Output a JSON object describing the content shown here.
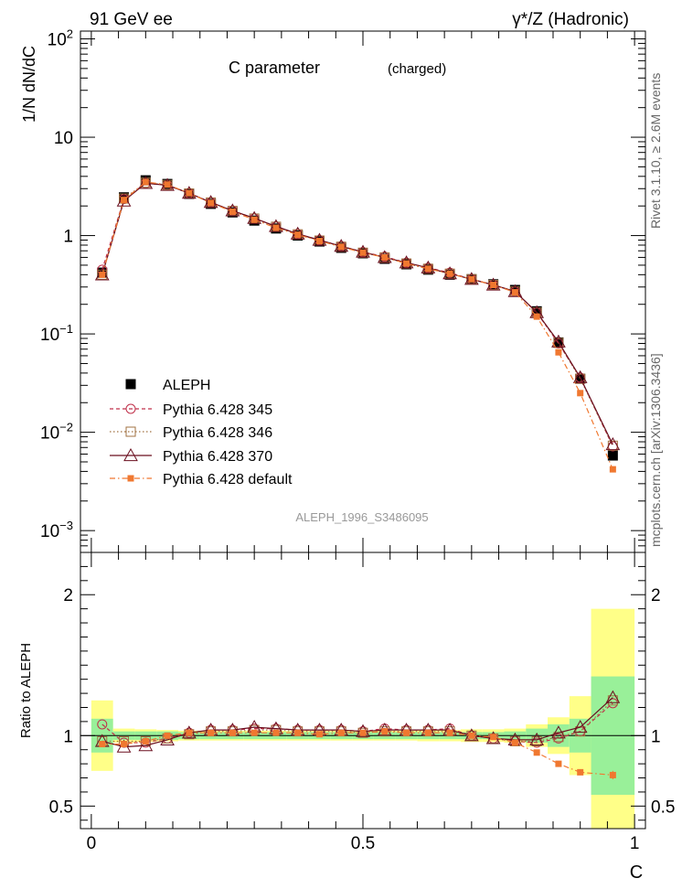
{
  "header": {
    "left": "91 GeV ee",
    "right": "γ*/Z (Hadronic)"
  },
  "side_labels": {
    "rivet": "Rivet 3.1.10, ≥ 2.6M events",
    "mcplots": "mcplots.cern.ch [arXiv:1306.3436]"
  },
  "colors": {
    "aleph": "#000000",
    "p345": "#c0304a",
    "p346": "#a07040",
    "p370": "#6a0f1f",
    "pdefault": "#f07830",
    "band_inner": "#99f099",
    "band_outer": "#ffff88"
  },
  "chart_data": [
    {
      "type": "line",
      "scale": "log",
      "title": "C parameter",
      "subtitle": "(charged)",
      "ylabel": "1/N dN/dC",
      "xlim": [
        -0.02,
        1.02
      ],
      "ylim": [
        0.0006,
        120
      ],
      "y_ticks": [
        {
          "value": 100,
          "base": "10",
          "exp": "2"
        },
        {
          "value": 10,
          "base": "10",
          "exp": ""
        },
        {
          "value": 1,
          "base": "1",
          "exp": ""
        },
        {
          "value": 0.1,
          "base": "10",
          "exp": "−1"
        },
        {
          "value": 0.01,
          "base": "10",
          "exp": "−2"
        },
        {
          "value": 0.001,
          "base": "10",
          "exp": "−3"
        }
      ],
      "watermark": "ALEPH_1996_S3486095",
      "x": [
        0.02,
        0.06,
        0.1,
        0.14,
        0.18,
        0.22,
        0.26,
        0.3,
        0.34,
        0.38,
        0.42,
        0.46,
        0.5,
        0.54,
        0.58,
        0.62,
        0.66,
        0.7,
        0.74,
        0.78,
        0.82,
        0.86,
        0.9,
        0.96
      ],
      "series": [
        {
          "name": "ALEPH",
          "key": "aleph",
          "values": [
            0.42,
            2.45,
            3.65,
            3.35,
            2.65,
            2.1,
            1.72,
            1.42,
            1.18,
            1.0,
            0.87,
            0.75,
            0.66,
            0.58,
            0.51,
            0.45,
            0.4,
            0.36,
            0.32,
            0.28,
            0.17,
            0.082,
            0.035,
            0.0058
          ]
        },
        {
          "name": "Pythia 6.428 345",
          "key": "p345",
          "values": [
            0.45,
            2.35,
            3.4,
            3.25,
            2.7,
            2.18,
            1.79,
            1.5,
            1.24,
            1.04,
            0.9,
            0.78,
            0.68,
            0.61,
            0.53,
            0.47,
            0.42,
            0.36,
            0.315,
            0.27,
            0.165,
            0.08,
            0.036,
            0.0072
          ]
        },
        {
          "name": "Pythia 6.428 346",
          "key": "p346",
          "values": [
            0.4,
            2.38,
            3.45,
            3.27,
            2.68,
            2.17,
            1.78,
            1.49,
            1.23,
            1.03,
            0.89,
            0.77,
            0.67,
            0.6,
            0.52,
            0.46,
            0.41,
            0.36,
            0.315,
            0.27,
            0.165,
            0.081,
            0.035,
            0.0073
          ]
        },
        {
          "name": "Pythia 6.428 370",
          "key": "p370",
          "values": [
            0.4,
            2.25,
            3.4,
            3.25,
            2.7,
            2.18,
            1.79,
            1.5,
            1.24,
            1.04,
            0.9,
            0.78,
            0.68,
            0.6,
            0.53,
            0.47,
            0.41,
            0.36,
            0.315,
            0.27,
            0.165,
            0.083,
            0.036,
            0.0075
          ]
        },
        {
          "name": "Pythia 6.428 default",
          "key": "pdefault",
          "values": [
            0.4,
            2.3,
            3.5,
            3.3,
            2.7,
            2.15,
            1.75,
            1.45,
            1.2,
            1.02,
            0.88,
            0.77,
            0.67,
            0.6,
            0.52,
            0.46,
            0.41,
            0.36,
            0.315,
            0.265,
            0.15,
            0.065,
            0.025,
            0.0042
          ]
        }
      ]
    },
    {
      "type": "line",
      "ylabel": "Ratio to ALEPH",
      "xlabel": "C",
      "xlim": [
        -0.02,
        1.02
      ],
      "ylim": [
        0.34,
        2.3
      ],
      "y_ticks": [
        0.5,
        1,
        2
      ],
      "x_ticks": [
        0,
        0.5,
        1
      ],
      "reference": 1,
      "band_edges": [
        0.0,
        0.04,
        0.08,
        0.12,
        0.16,
        0.2,
        0.24,
        0.28,
        0.32,
        0.36,
        0.4,
        0.44,
        0.48,
        0.52,
        0.56,
        0.6,
        0.64,
        0.68,
        0.72,
        0.76,
        0.8,
        0.84,
        0.88,
        0.92,
        1.0
      ],
      "band_inner": [
        0.12,
        0.03,
        0.03,
        0.03,
        0.025,
        0.025,
        0.025,
        0.025,
        0.025,
        0.025,
        0.025,
        0.025,
        0.025,
        0.025,
        0.025,
        0.025,
        0.025,
        0.025,
        0.025,
        0.03,
        0.05,
        0.08,
        0.12,
        0.42
      ],
      "band_outer": [
        0.25,
        0.05,
        0.045,
        0.04,
        0.035,
        0.035,
        0.035,
        0.035,
        0.035,
        0.035,
        0.035,
        0.035,
        0.035,
        0.035,
        0.035,
        0.04,
        0.04,
        0.045,
        0.045,
        0.05,
        0.08,
        0.13,
        0.28,
        0.9
      ],
      "series": [
        {
          "name": "Pythia 6.428 345",
          "key": "p345",
          "values": [
            1.08,
            0.95,
            0.95,
            0.98,
            1.02,
            1.04,
            1.04,
            1.05,
            1.05,
            1.04,
            1.04,
            1.04,
            1.03,
            1.05,
            1.04,
            1.04,
            1.05,
            1.0,
            0.98,
            0.96,
            0.95,
            0.98,
            1.03,
            1.23
          ]
        },
        {
          "name": "Pythia 6.428 346",
          "key": "p346",
          "values": [
            0.96,
            0.96,
            0.96,
            0.98,
            1.01,
            1.03,
            1.03,
            1.04,
            1.04,
            1.03,
            1.03,
            1.03,
            1.02,
            1.03,
            1.03,
            1.03,
            1.03,
            1.0,
            0.98,
            0.96,
            0.96,
            0.99,
            1.03,
            1.25
          ]
        },
        {
          "name": "Pythia 6.428 370",
          "key": "p370",
          "values": [
            0.96,
            0.92,
            0.93,
            0.97,
            1.02,
            1.04,
            1.04,
            1.06,
            1.05,
            1.04,
            1.04,
            1.04,
            1.03,
            1.04,
            1.04,
            1.04,
            1.04,
            1.0,
            0.98,
            0.97,
            0.97,
            1.02,
            1.06,
            1.27
          ]
        },
        {
          "name": "Pythia 6.428 default",
          "key": "pdefault",
          "values": [
            0.94,
            0.94,
            0.96,
            1.0,
            1.02,
            1.02,
            1.02,
            1.02,
            1.02,
            1.02,
            1.01,
            1.02,
            1.02,
            1.03,
            1.02,
            1.02,
            1.02,
            1.0,
            0.99,
            0.95,
            0.88,
            0.8,
            0.74,
            0.72
          ]
        }
      ]
    }
  ]
}
